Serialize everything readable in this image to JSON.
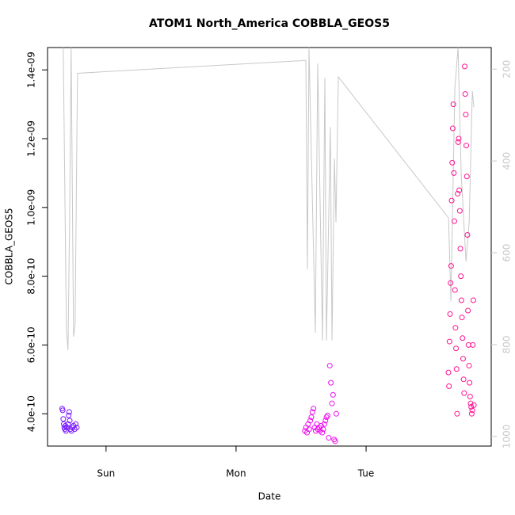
{
  "chart_data": {
    "type": "scatter",
    "title": "ATOM1 North_America COBBLA_GEOS5",
    "xlabel": "Date",
    "ylabel": "COBBLA_GEOS5",
    "xlim": [
      -10.8,
      71.1
    ],
    "xticks": [
      {
        "value": 0,
        "label": "Sun"
      },
      {
        "value": 24,
        "label": "Mon"
      },
      {
        "value": 48,
        "label": "Tue"
      }
    ],
    "ylim": [
      3.06e-10,
      1.465e-09
    ],
    "yticks": [
      {
        "value": 4e-10,
        "label": "4.0e-10"
      },
      {
        "value": 6e-10,
        "label": "6.0e-10"
      },
      {
        "value": 8e-10,
        "label": "8.0e-10"
      },
      {
        "value": 1e-09,
        "label": "1.0e-09"
      },
      {
        "value": 1.2e-09,
        "label": "1.2e-09"
      },
      {
        "value": 1.4e-09,
        "label": "1.4e-09"
      }
    ],
    "y2lim": [
      1021,
      153
    ],
    "y2ticks": [
      200,
      400,
      600,
      800,
      1000
    ],
    "y2color": "#c8c8c8",
    "series": [
      {
        "type": "line",
        "axis": "y2",
        "color": "#c8c8c8",
        "x": [
          -7.9,
          -7.32,
          -7.02,
          -6.73,
          -6.44,
          -6.0,
          -5.71,
          -5.27,
          36.88,
          37.17,
          37.46,
          38.63,
          39.07,
          39.95,
          40.39,
          40.68,
          41.41,
          41.71,
          42.15,
          42.44,
          42.88,
          63.22,
          63.66,
          64.39,
          64.98,
          65.56,
          66.44,
          67.03,
          67.61,
          67.9
        ],
        "values": [
          153,
          766,
          812,
          533,
          153,
          783,
          757,
          209,
          181,
          636,
          153,
          774,
          188,
          791,
          219,
          791,
          326,
          791,
          395,
          533,
          217,
          524,
          705,
          240,
          153,
          429,
          619,
          533,
          248,
          283
        ]
      },
      {
        "color": "#7a1aff",
        "x": [
          -8.1,
          -8.0,
          -7.9,
          -7.8,
          -7.7,
          -7.6,
          -7.5,
          -7.4,
          -7.2,
          -7.0,
          -6.9,
          -6.8,
          -6.7,
          -6.6,
          -6.4,
          -6.2,
          -6.0,
          -5.8,
          -5.6,
          -5.4
        ],
        "values": [
          4.15e-10,
          4.1e-10,
          3.85e-10,
          3.7e-10,
          3.6e-10,
          3.55e-10,
          3.65e-10,
          3.5e-10,
          3.6e-10,
          3.7e-10,
          3.95e-10,
          4.05e-10,
          3.8e-10,
          3.55e-10,
          3.5e-10,
          3.6e-10,
          3.65e-10,
          3.55e-10,
          3.7e-10,
          3.6e-10
        ]
      },
      {
        "color": "#ee10ee",
        "x": [
          36.7,
          36.9,
          37.1,
          37.3,
          37.5,
          37.7,
          37.9,
          38.1,
          38.3,
          38.5,
          38.7,
          38.9,
          39.1,
          39.3,
          39.5,
          39.7,
          39.9,
          40.1,
          40.3,
          40.5,
          40.7,
          40.9,
          41.1,
          41.3,
          41.5,
          41.7,
          41.9,
          42.1,
          42.3,
          42.5
        ],
        "values": [
          3.5e-10,
          3.6e-10,
          3.45e-10,
          3.7e-10,
          3.55e-10,
          3.8e-10,
          3.9e-10,
          4.05e-10,
          4.15e-10,
          3.6e-10,
          3.5e-10,
          3.7e-10,
          3.55e-10,
          3.6e-10,
          3.5e-10,
          3.65e-10,
          3.45e-10,
          3.55e-10,
          3.7e-10,
          3.8e-10,
          3.9e-10,
          3.95e-10,
          3.3e-10,
          5.4e-10,
          4.9e-10,
          4.3e-10,
          4.55e-10,
          3.25e-10,
          3.2e-10,
          4e-10
        ]
      },
      {
        "color": "#ff1493",
        "x": [
          63.2,
          63.3,
          63.4,
          63.5,
          63.6,
          63.7,
          63.8,
          63.9,
          64.0,
          64.1,
          64.2,
          64.3,
          64.4,
          64.5,
          64.6,
          64.7,
          64.8,
          64.9,
          65.0,
          65.1,
          65.2,
          65.3,
          65.4,
          65.5,
          65.6,
          65.7,
          65.8,
          65.9,
          66.0,
          66.1,
          66.2,
          66.3,
          66.4,
          66.5,
          66.6,
          66.7,
          66.8,
          66.9,
          67.0,
          67.1,
          67.2,
          67.3,
          67.4,
          67.5,
          67.6,
          67.7,
          67.8,
          67.9
        ],
        "values": [
          5.2e-10,
          4.8e-10,
          6.1e-10,
          6.9e-10,
          7.8e-10,
          8.3e-10,
          1.02e-09,
          1.13e-09,
          1.23e-09,
          1.3e-09,
          1.1e-09,
          9.6e-10,
          7.6e-10,
          6.5e-10,
          5.9e-10,
          5.3e-10,
          4e-10,
          1.04e-09,
          1.19e-09,
          1.2e-09,
          1.05e-09,
          9.9e-10,
          8.8e-10,
          8e-10,
          7.3e-10,
          6.8e-10,
          6.2e-10,
          5.6e-10,
          5e-10,
          4.6e-10,
          1.41e-09,
          1.33e-09,
          1.27e-09,
          1.18e-09,
          1.09e-09,
          9.2e-10,
          7e-10,
          6e-10,
          5.4e-10,
          4.9e-10,
          4.5e-10,
          4.3e-10,
          4.2e-10,
          4e-10,
          4.1e-10,
          6e-10,
          7.3e-10,
          4.25e-10
        ]
      }
    ]
  }
}
